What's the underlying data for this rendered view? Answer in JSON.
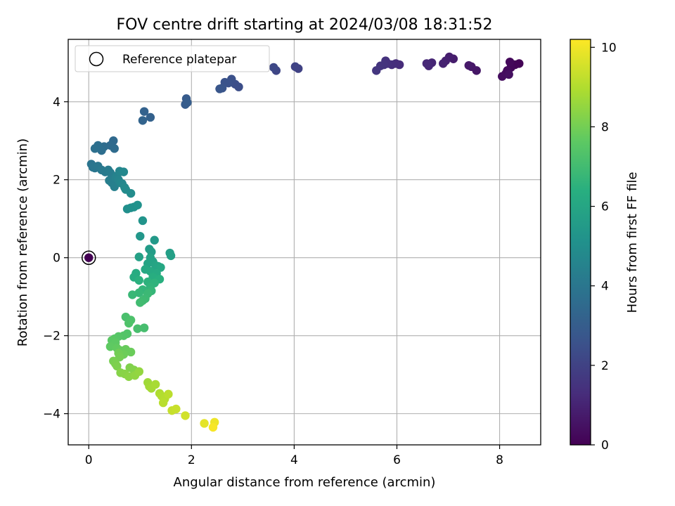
{
  "chart_data": {
    "type": "scatter",
    "title": "FOV centre drift starting at 2024/03/08 18:31:52",
    "xlabel": "Angular distance from reference (arcmin)",
    "ylabel": "Rotation from reference (arcmin)",
    "xlim": [
      -0.4,
      8.8
    ],
    "ylim": [
      -4.8,
      5.6
    ],
    "xticks": [
      0,
      2,
      4,
      6,
      8
    ],
    "yticks": [
      -4,
      -2,
      0,
      2,
      4
    ],
    "grid": true,
    "legend": {
      "label": "Reference platepar",
      "position": "top-left"
    },
    "reference_point": {
      "x": 0,
      "y": 0
    },
    "colorbar": {
      "label": "Hours from first FF file",
      "colormap": "viridis",
      "range": [
        0,
        10.2
      ],
      "ticks": [
        0,
        2,
        4,
        6,
        8,
        10
      ]
    },
    "points": [
      {
        "x": 0.0,
        "y": 0.0,
        "t": 0.0
      },
      {
        "x": 8.38,
        "y": 4.98,
        "t": 0.05
      },
      {
        "x": 8.3,
        "y": 4.95,
        "t": 0.1
      },
      {
        "x": 8.22,
        "y": 4.88,
        "t": 0.15
      },
      {
        "x": 8.2,
        "y": 5.02,
        "t": 0.2
      },
      {
        "x": 8.15,
        "y": 4.8,
        "t": 0.25
      },
      {
        "x": 8.12,
        "y": 4.72,
        "t": 0.3
      },
      {
        "x": 8.05,
        "y": 4.65,
        "t": 0.35
      },
      {
        "x": 8.18,
        "y": 4.7,
        "t": 0.4
      },
      {
        "x": 7.55,
        "y": 4.8,
        "t": 0.6
      },
      {
        "x": 7.45,
        "y": 4.9,
        "t": 0.65
      },
      {
        "x": 7.4,
        "y": 4.93,
        "t": 0.7
      },
      {
        "x": 7.1,
        "y": 5.1,
        "t": 0.8
      },
      {
        "x": 7.02,
        "y": 5.15,
        "t": 0.85
      },
      {
        "x": 6.95,
        "y": 5.05,
        "t": 0.9
      },
      {
        "x": 6.9,
        "y": 4.98,
        "t": 0.95
      },
      {
        "x": 6.68,
        "y": 5.0,
        "t": 1.05
      },
      {
        "x": 6.62,
        "y": 4.92,
        "t": 1.1
      },
      {
        "x": 6.58,
        "y": 4.98,
        "t": 1.15
      },
      {
        "x": 6.05,
        "y": 4.95,
        "t": 1.25
      },
      {
        "x": 5.98,
        "y": 4.98,
        "t": 1.3
      },
      {
        "x": 5.9,
        "y": 4.95,
        "t": 1.35
      },
      {
        "x": 5.82,
        "y": 4.98,
        "t": 1.4
      },
      {
        "x": 5.78,
        "y": 5.05,
        "t": 1.45
      },
      {
        "x": 5.75,
        "y": 4.95,
        "t": 1.5
      },
      {
        "x": 5.68,
        "y": 4.92,
        "t": 1.55
      },
      {
        "x": 5.6,
        "y": 4.8,
        "t": 1.6
      },
      {
        "x": 4.08,
        "y": 4.85,
        "t": 2.0
      },
      {
        "x": 4.02,
        "y": 4.9,
        "t": 2.05
      },
      {
        "x": 3.65,
        "y": 4.8,
        "t": 2.15
      },
      {
        "x": 3.6,
        "y": 4.88,
        "t": 2.2
      },
      {
        "x": 2.92,
        "y": 4.38,
        "t": 2.4
      },
      {
        "x": 2.85,
        "y": 4.45,
        "t": 2.45
      },
      {
        "x": 2.78,
        "y": 4.58,
        "t": 2.5
      },
      {
        "x": 2.72,
        "y": 4.48,
        "t": 2.55
      },
      {
        "x": 2.65,
        "y": 4.5,
        "t": 2.6
      },
      {
        "x": 2.6,
        "y": 4.35,
        "t": 2.65
      },
      {
        "x": 2.55,
        "y": 4.33,
        "t": 2.7
      },
      {
        "x": 1.9,
        "y": 4.08,
        "t": 2.9
      },
      {
        "x": 1.88,
        "y": 3.93,
        "t": 2.95
      },
      {
        "x": 1.92,
        "y": 3.98,
        "t": 3.0
      },
      {
        "x": 1.2,
        "y": 3.6,
        "t": 3.15
      },
      {
        "x": 1.08,
        "y": 3.75,
        "t": 3.2
      },
      {
        "x": 1.05,
        "y": 3.52,
        "t": 3.25
      },
      {
        "x": 0.48,
        "y": 3.0,
        "t": 3.45
      },
      {
        "x": 0.42,
        "y": 2.88,
        "t": 3.5
      },
      {
        "x": 0.5,
        "y": 2.8,
        "t": 3.55
      },
      {
        "x": 0.3,
        "y": 2.85,
        "t": 3.6
      },
      {
        "x": 0.25,
        "y": 2.75,
        "t": 3.65
      },
      {
        "x": 0.18,
        "y": 2.88,
        "t": 3.7
      },
      {
        "x": 0.12,
        "y": 2.8,
        "t": 3.75
      },
      {
        "x": 0.05,
        "y": 2.4,
        "t": 3.9
      },
      {
        "x": 0.08,
        "y": 2.32,
        "t": 3.95
      },
      {
        "x": 0.12,
        "y": 2.3,
        "t": 4.0
      },
      {
        "x": 0.18,
        "y": 2.35,
        "t": 4.05
      },
      {
        "x": 0.25,
        "y": 2.25,
        "t": 4.1
      },
      {
        "x": 0.32,
        "y": 2.2,
        "t": 4.15
      },
      {
        "x": 0.38,
        "y": 2.25,
        "t": 4.2
      },
      {
        "x": 0.42,
        "y": 2.18,
        "t": 4.25
      },
      {
        "x": 0.4,
        "y": 1.98,
        "t": 4.3
      },
      {
        "x": 0.45,
        "y": 1.92,
        "t": 4.35
      },
      {
        "x": 0.5,
        "y": 1.82,
        "t": 4.4
      },
      {
        "x": 0.52,
        "y": 2.05,
        "t": 4.45
      },
      {
        "x": 0.55,
        "y": 2.1,
        "t": 4.5
      },
      {
        "x": 0.58,
        "y": 2.0,
        "t": 4.55
      },
      {
        "x": 0.6,
        "y": 2.22,
        "t": 4.6
      },
      {
        "x": 0.62,
        "y": 1.92,
        "t": 4.65
      },
      {
        "x": 0.65,
        "y": 1.9,
        "t": 4.7
      },
      {
        "x": 0.68,
        "y": 2.2,
        "t": 4.75
      },
      {
        "x": 0.7,
        "y": 1.8,
        "t": 4.8
      },
      {
        "x": 0.72,
        "y": 1.75,
        "t": 4.85
      },
      {
        "x": 0.82,
        "y": 1.65,
        "t": 4.9
      },
      {
        "x": 0.75,
        "y": 1.25,
        "t": 5.0
      },
      {
        "x": 0.82,
        "y": 1.28,
        "t": 5.05
      },
      {
        "x": 0.88,
        "y": 1.3,
        "t": 5.1
      },
      {
        "x": 0.95,
        "y": 1.35,
        "t": 5.15
      },
      {
        "x": 1.05,
        "y": 0.95,
        "t": 5.25
      },
      {
        "x": 1.0,
        "y": 0.55,
        "t": 5.35
      },
      {
        "x": 1.28,
        "y": 0.45,
        "t": 5.45
      },
      {
        "x": 1.18,
        "y": 0.22,
        "t": 5.55
      },
      {
        "x": 1.22,
        "y": 0.15,
        "t": 5.6
      },
      {
        "x": 1.58,
        "y": 0.12,
        "t": 5.65
      },
      {
        "x": 1.6,
        "y": 0.05,
        "t": 5.7
      },
      {
        "x": 0.98,
        "y": 0.02,
        "t": 5.75
      },
      {
        "x": 1.2,
        "y": 0.0,
        "t": 5.8
      },
      {
        "x": 1.25,
        "y": -0.1,
        "t": 5.85
      },
      {
        "x": 1.15,
        "y": -0.15,
        "t": 5.9
      },
      {
        "x": 1.3,
        "y": -0.2,
        "t": 5.95
      },
      {
        "x": 1.35,
        "y": -0.22,
        "t": 6.0
      },
      {
        "x": 1.4,
        "y": -0.25,
        "t": 6.05
      },
      {
        "x": 1.1,
        "y": -0.3,
        "t": 6.1
      },
      {
        "x": 1.2,
        "y": -0.35,
        "t": 6.15
      },
      {
        "x": 1.32,
        "y": -0.4,
        "t": 6.2
      },
      {
        "x": 0.92,
        "y": -0.4,
        "t": 6.25
      },
      {
        "x": 0.88,
        "y": -0.5,
        "t": 6.3
      },
      {
        "x": 1.25,
        "y": -0.5,
        "t": 6.35
      },
      {
        "x": 1.38,
        "y": -0.55,
        "t": 6.4
      },
      {
        "x": 0.98,
        "y": -0.58,
        "t": 6.45
      },
      {
        "x": 1.15,
        "y": -0.62,
        "t": 6.5
      },
      {
        "x": 1.28,
        "y": -0.65,
        "t": 6.55
      },
      {
        "x": 1.2,
        "y": -0.75,
        "t": 6.6
      },
      {
        "x": 1.05,
        "y": -0.82,
        "t": 6.65
      },
      {
        "x": 1.22,
        "y": -0.85,
        "t": 6.7
      },
      {
        "x": 0.98,
        "y": -0.9,
        "t": 6.75
      },
      {
        "x": 0.85,
        "y": -0.95,
        "t": 6.8
      },
      {
        "x": 1.15,
        "y": -0.92,
        "t": 6.85
      },
      {
        "x": 1.1,
        "y": -1.05,
        "t": 6.9
      },
      {
        "x": 1.05,
        "y": -1.1,
        "t": 6.95
      },
      {
        "x": 1.0,
        "y": -1.15,
        "t": 7.0
      },
      {
        "x": 1.08,
        "y": -1.8,
        "t": 7.1
      },
      {
        "x": 0.95,
        "y": -1.82,
        "t": 7.15
      },
      {
        "x": 0.72,
        "y": -1.52,
        "t": 7.2
      },
      {
        "x": 0.82,
        "y": -1.6,
        "t": 7.25
      },
      {
        "x": 0.78,
        "y": -1.68,
        "t": 7.3
      },
      {
        "x": 0.75,
        "y": -1.95,
        "t": 7.35
      },
      {
        "x": 0.68,
        "y": -2.0,
        "t": 7.4
      },
      {
        "x": 0.58,
        "y": -2.02,
        "t": 7.45
      },
      {
        "x": 0.5,
        "y": -2.08,
        "t": 7.5
      },
      {
        "x": 0.45,
        "y": -2.12,
        "t": 7.55
      },
      {
        "x": 0.52,
        "y": -2.18,
        "t": 7.6
      },
      {
        "x": 0.42,
        "y": -2.28,
        "t": 7.65
      },
      {
        "x": 0.55,
        "y": -2.32,
        "t": 7.7
      },
      {
        "x": 0.62,
        "y": -2.38,
        "t": 7.75
      },
      {
        "x": 0.72,
        "y": -2.35,
        "t": 7.8
      },
      {
        "x": 0.82,
        "y": -2.42,
        "t": 7.85
      },
      {
        "x": 0.68,
        "y": -2.48,
        "t": 7.9
      },
      {
        "x": 0.58,
        "y": -2.45,
        "t": 7.95
      },
      {
        "x": 0.6,
        "y": -2.55,
        "t": 8.0
      },
      {
        "x": 0.48,
        "y": -2.65,
        "t": 8.05
      },
      {
        "x": 0.52,
        "y": -2.72,
        "t": 8.1
      },
      {
        "x": 0.55,
        "y": -2.78,
        "t": 8.15
      },
      {
        "x": 0.8,
        "y": -2.82,
        "t": 8.2
      },
      {
        "x": 0.88,
        "y": -2.88,
        "t": 8.25
      },
      {
        "x": 0.62,
        "y": -2.95,
        "t": 8.3
      },
      {
        "x": 0.7,
        "y": -2.98,
        "t": 8.35
      },
      {
        "x": 0.78,
        "y": -3.05,
        "t": 8.4
      },
      {
        "x": 0.9,
        "y": -3.02,
        "t": 8.45
      },
      {
        "x": 0.98,
        "y": -2.92,
        "t": 8.5
      },
      {
        "x": 1.15,
        "y": -3.2,
        "t": 8.7
      },
      {
        "x": 1.18,
        "y": -3.3,
        "t": 8.75
      },
      {
        "x": 1.22,
        "y": -3.35,
        "t": 8.8
      },
      {
        "x": 1.3,
        "y": -3.25,
        "t": 8.85
      },
      {
        "x": 1.38,
        "y": -3.48,
        "t": 8.95
      },
      {
        "x": 1.42,
        "y": -3.55,
        "t": 9.0
      },
      {
        "x": 1.48,
        "y": -3.62,
        "t": 9.05
      },
      {
        "x": 1.45,
        "y": -3.72,
        "t": 9.1
      },
      {
        "x": 1.55,
        "y": -3.5,
        "t": 9.15
      },
      {
        "x": 1.62,
        "y": -3.92,
        "t": 9.3
      },
      {
        "x": 1.7,
        "y": -3.88,
        "t": 9.35
      },
      {
        "x": 1.88,
        "y": -4.05,
        "t": 9.5
      },
      {
        "x": 2.25,
        "y": -4.25,
        "t": 9.8
      },
      {
        "x": 2.45,
        "y": -4.22,
        "t": 9.95
      },
      {
        "x": 2.42,
        "y": -4.35,
        "t": 10.1
      }
    ]
  }
}
